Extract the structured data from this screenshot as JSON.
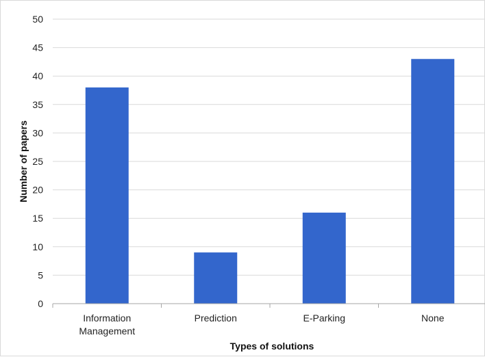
{
  "chart_data": {
    "type": "bar",
    "title": "",
    "xlabel": "Types of solutions",
    "ylabel": "Number of papers",
    "categories": [
      [
        "Information",
        "Management"
      ],
      [
        "Prediction"
      ],
      [
        "E-Parking"
      ],
      [
        "None"
      ]
    ],
    "values": [
      38,
      9,
      16,
      43
    ],
    "ylim": [
      0,
      50
    ],
    "yticks": [
      0,
      5,
      10,
      15,
      20,
      25,
      30,
      35,
      40,
      45,
      50
    ],
    "grid": true,
    "legend": "none",
    "colors": {
      "bar": "#3366cc",
      "grid": "#d9d9d9",
      "axis": "#a6a6a6"
    }
  }
}
